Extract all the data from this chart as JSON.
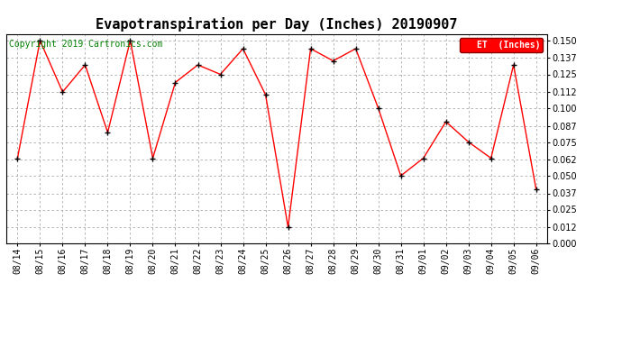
{
  "title": "Evapotranspiration per Day (Inches) 20190907",
  "copyright": "Copyright 2019 Cartronics.com",
  "legend_label": "ET  (Inches)",
  "dates": [
    "08/14",
    "08/15",
    "08/16",
    "08/17",
    "08/18",
    "08/19",
    "08/20",
    "08/21",
    "08/22",
    "08/23",
    "08/24",
    "08/25",
    "08/26",
    "08/27",
    "08/28",
    "08/29",
    "08/30",
    "08/31",
    "09/01",
    "09/02",
    "09/03",
    "09/04",
    "09/05",
    "09/06"
  ],
  "values": [
    0.063,
    0.15,
    0.112,
    0.132,
    0.082,
    0.15,
    0.063,
    0.119,
    0.132,
    0.125,
    0.144,
    0.11,
    0.012,
    0.144,
    0.135,
    0.144,
    0.1,
    0.05,
    0.063,
    0.09,
    0.075,
    0.063,
    0.132,
    0.04
  ],
  "line_color": "red",
  "marker": "+",
  "marker_color": "black",
  "background_color": "white",
  "grid_color": "#aaaaaa",
  "ylim": [
    0.0,
    0.155
  ],
  "yticks": [
    0.0,
    0.012,
    0.025,
    0.037,
    0.05,
    0.062,
    0.075,
    0.087,
    0.1,
    0.112,
    0.125,
    0.137,
    0.15
  ],
  "title_fontsize": 11,
  "copyright_fontsize": 7,
  "tick_fontsize": 7,
  "legend_bg": "red",
  "legend_text_color": "white"
}
